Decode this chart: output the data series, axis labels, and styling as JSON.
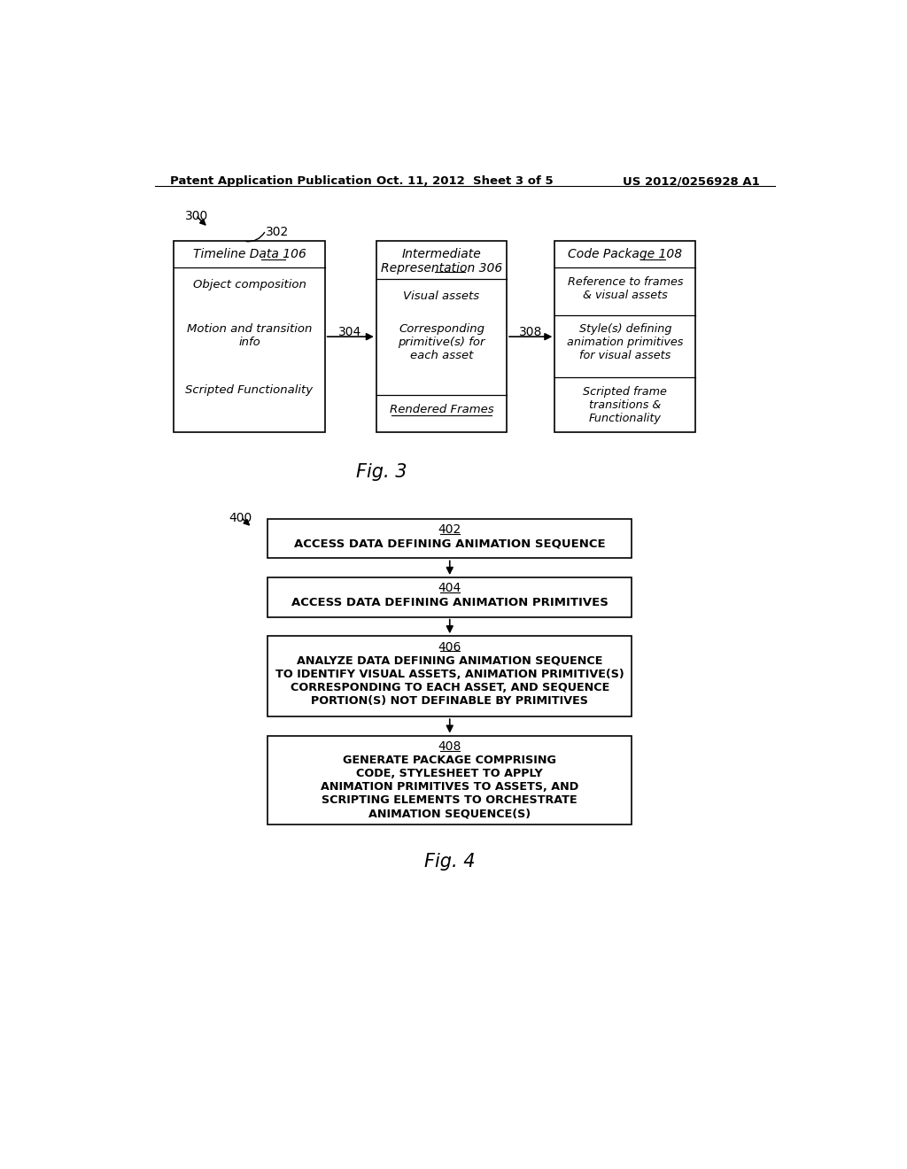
{
  "bg_color": "#ffffff",
  "header_left": "Patent Application Publication",
  "header_mid": "Oct. 11, 2012  Sheet 3 of 5",
  "header_right": "US 2012/0256928 A1"
}
